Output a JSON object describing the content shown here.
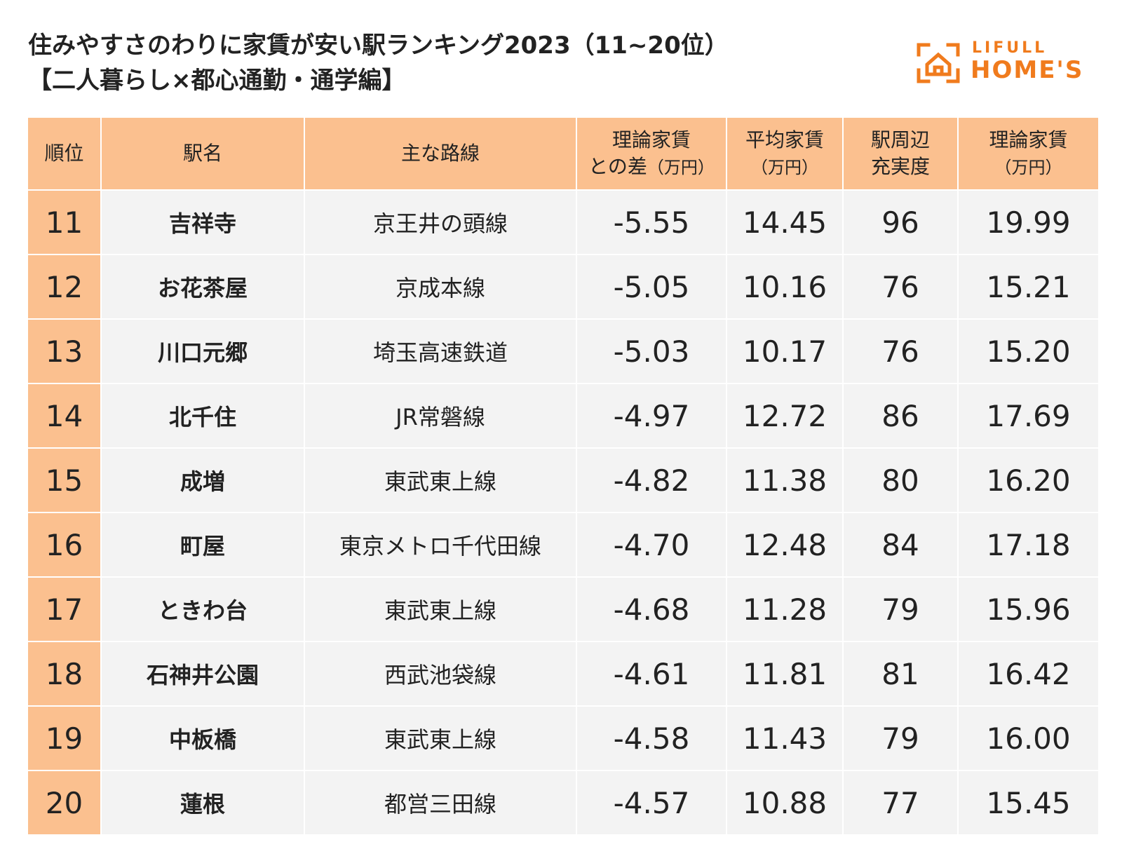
{
  "title": {
    "line1": "住みやすさのわりに家賃が安い駅ランキング2023（11~20位）",
    "line2": "【二人暮らし×都心通勤・通学編】"
  },
  "logo": {
    "top": "LIFULL",
    "main": "HOME'S",
    "color": "#f07b1d",
    "icon": "house-icon"
  },
  "colors": {
    "header_bg": "#fbc08f",
    "cell_bg": "#f3f3f3",
    "accent": "#f07b1d"
  },
  "table": {
    "headers": {
      "rank": "順位",
      "station": "駅名",
      "line": "主な路線",
      "diff_l1": "理論家賃",
      "diff_l2": "との差",
      "diff_unit": "（万円）",
      "avg_l1": "平均家賃",
      "avg_unit": "（万円）",
      "score_l1": "駅周辺",
      "score_l2": "充実度",
      "theory_l1": "理論家賃",
      "theory_unit": "（万円）"
    },
    "rows": [
      {
        "rank": "11",
        "station": "吉祥寺",
        "line": "京王井の頭線",
        "diff": "-5.55",
        "avg": "14.45",
        "score": "96",
        "theory": "19.99"
      },
      {
        "rank": "12",
        "station": "お花茶屋",
        "line": "京成本線",
        "diff": "-5.05",
        "avg": "10.16",
        "score": "76",
        "theory": "15.21"
      },
      {
        "rank": "13",
        "station": "川口元郷",
        "line": "埼玉高速鉄道",
        "diff": "-5.03",
        "avg": "10.17",
        "score": "76",
        "theory": "15.20"
      },
      {
        "rank": "14",
        "station": "北千住",
        "line": "JR常磐線",
        "diff": "-4.97",
        "avg": "12.72",
        "score": "86",
        "theory": "17.69"
      },
      {
        "rank": "15",
        "station": "成増",
        "line": "東武東上線",
        "diff": "-4.82",
        "avg": "11.38",
        "score": "80",
        "theory": "16.20"
      },
      {
        "rank": "16",
        "station": "町屋",
        "line": "東京メトロ千代田線",
        "diff": "-4.70",
        "avg": "12.48",
        "score": "84",
        "theory": "17.18"
      },
      {
        "rank": "17",
        "station": "ときわ台",
        "line": "東武東上線",
        "diff": "-4.68",
        "avg": "11.28",
        "score": "79",
        "theory": "15.96"
      },
      {
        "rank": "18",
        "station": "石神井公園",
        "line": "西武池袋線",
        "diff": "-4.61",
        "avg": "11.81",
        "score": "81",
        "theory": "16.42"
      },
      {
        "rank": "19",
        "station": "中板橋",
        "line": "東武東上線",
        "diff": "-4.58",
        "avg": "11.43",
        "score": "79",
        "theory": "16.00"
      },
      {
        "rank": "20",
        "station": "蓮根",
        "line": "都営三田線",
        "diff": "-4.57",
        "avg": "10.88",
        "score": "77",
        "theory": "15.45"
      }
    ]
  }
}
